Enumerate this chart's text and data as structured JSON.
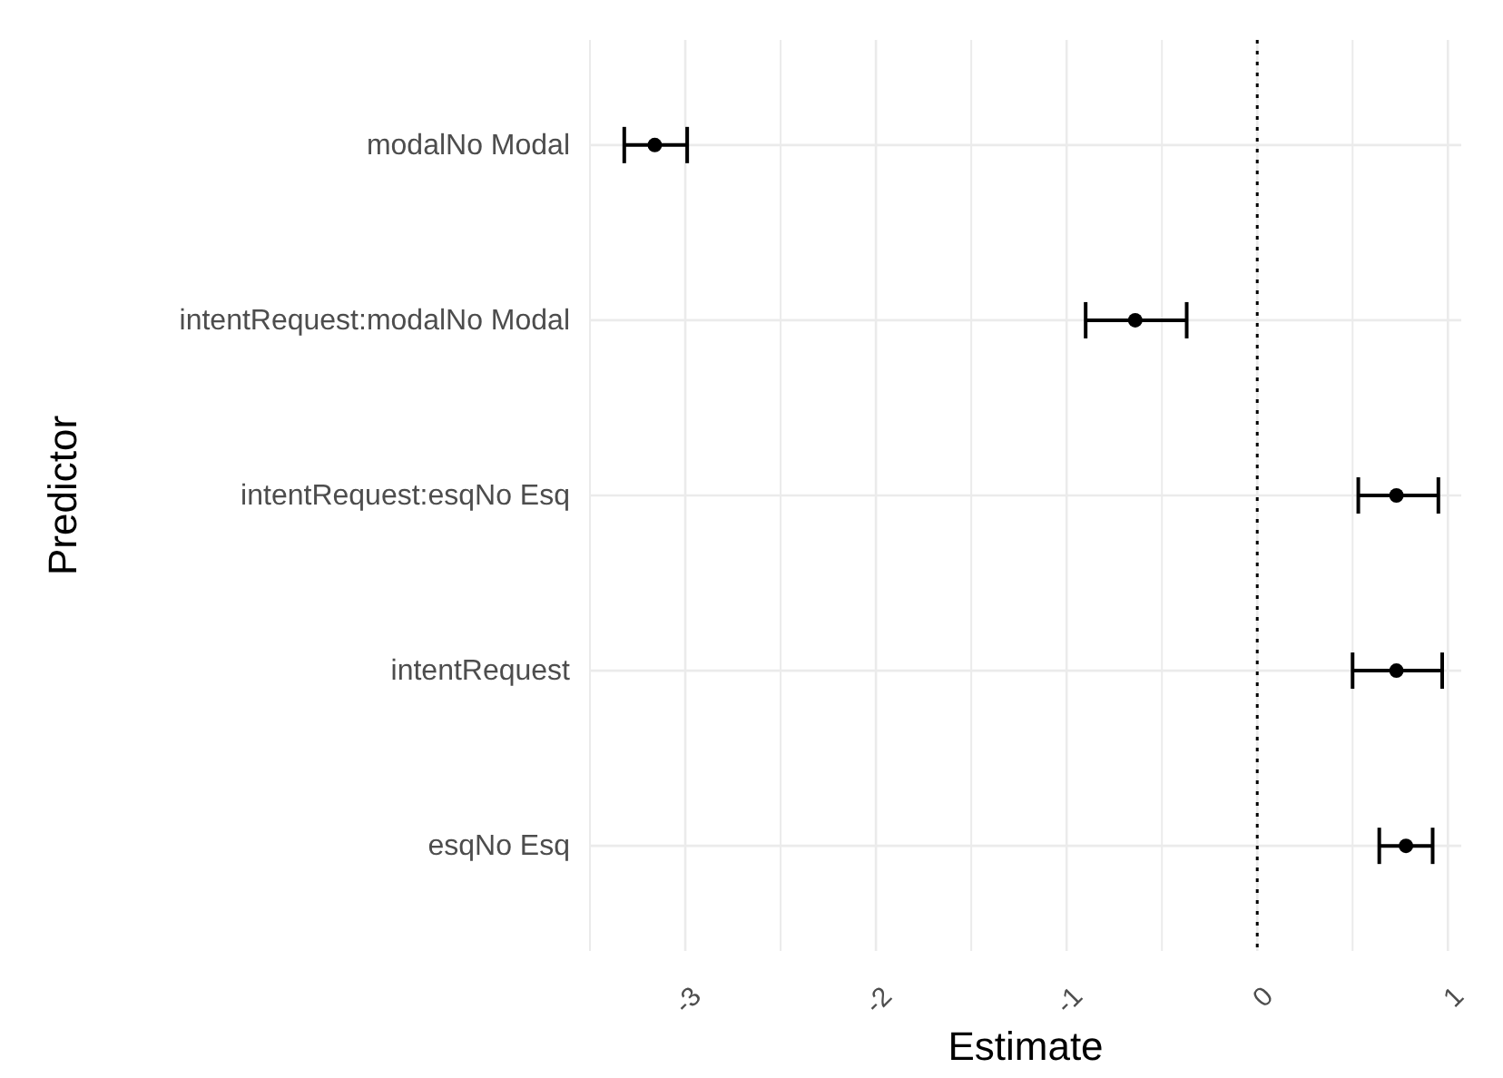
{
  "chart_data": {
    "type": "scatter",
    "orientation": "horizontal",
    "xlabel": "Estimate",
    "ylabel": "Predictor",
    "categories": [
      "modalNo Modal",
      "intentRequest:modalNo Modal",
      "intentRequest:esqNo Esq",
      "intentRequest",
      "esqNo Esq"
    ],
    "values": [
      -3.16,
      -0.64,
      0.73,
      0.73,
      0.78
    ],
    "errors": [
      [
        -3.32,
        -2.99
      ],
      [
        -0.9,
        -0.37
      ],
      [
        0.53,
        0.95
      ],
      [
        0.5,
        0.97
      ],
      [
        0.64,
        0.92
      ]
    ],
    "color": "#000000",
    "marker": "circle",
    "xlim": [
      -3.5,
      1.07
    ],
    "xticks": [
      {
        "value": -3.5,
        "label": null
      },
      -3,
      {
        "value": -2.5,
        "label": null
      },
      -2,
      {
        "value": -1.5,
        "label": null
      },
      -1,
      {
        "value": -0.5,
        "label": null
      },
      0,
      {
        "value": 0.5,
        "label": null
      },
      1
    ],
    "ref_lines": [
      {
        "axis": "x",
        "value": 0,
        "line_style": "dotted",
        "color": "#000000"
      }
    ],
    "grid": true
  }
}
